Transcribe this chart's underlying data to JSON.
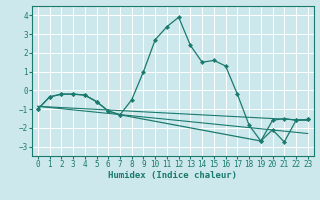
{
  "xlabel": "Humidex (Indice chaleur)",
  "xlim": [
    -0.5,
    23.5
  ],
  "ylim": [
    -3.5,
    4.5
  ],
  "xticks": [
    0,
    1,
    2,
    3,
    4,
    5,
    6,
    7,
    8,
    9,
    10,
    11,
    12,
    13,
    14,
    15,
    16,
    17,
    18,
    19,
    20,
    21,
    22,
    23
  ],
  "yticks": [
    -3,
    -2,
    -1,
    0,
    1,
    2,
    3,
    4
  ],
  "bg_color": "#cde8ec",
  "grid_color": "#ffffff",
  "line_color": "#1a7a6e",
  "lines": [
    {
      "x": [
        0,
        1,
        2,
        3,
        4,
        5,
        6,
        7,
        8,
        9,
        10,
        11,
        12,
        13,
        14,
        15,
        16,
        17,
        18,
        19,
        20,
        21,
        22,
        23
      ],
      "y": [
        -1.0,
        -0.35,
        -0.2,
        -0.2,
        -0.25,
        -0.6,
        -1.1,
        -1.3,
        -0.5,
        1.0,
        2.7,
        3.4,
        3.9,
        2.4,
        1.5,
        1.6,
        1.3,
        -0.2,
        -1.85,
        -2.7,
        -1.6,
        -1.5,
        -1.6,
        -1.55
      ],
      "markers": true
    },
    {
      "x": [
        0,
        23
      ],
      "y": [
        -0.85,
        -1.6
      ],
      "markers": false
    },
    {
      "x": [
        0,
        23
      ],
      "y": [
        -0.85,
        -2.3
      ],
      "markers": false
    },
    {
      "x": [
        0,
        1,
        2,
        3,
        4,
        5,
        6,
        7,
        19,
        20,
        21,
        22,
        23
      ],
      "y": [
        -1.0,
        -0.35,
        -0.2,
        -0.2,
        -0.25,
        -0.6,
        -1.1,
        -1.3,
        -2.7,
        -2.1,
        -2.75,
        -1.6,
        -1.55
      ],
      "markers": true
    }
  ]
}
